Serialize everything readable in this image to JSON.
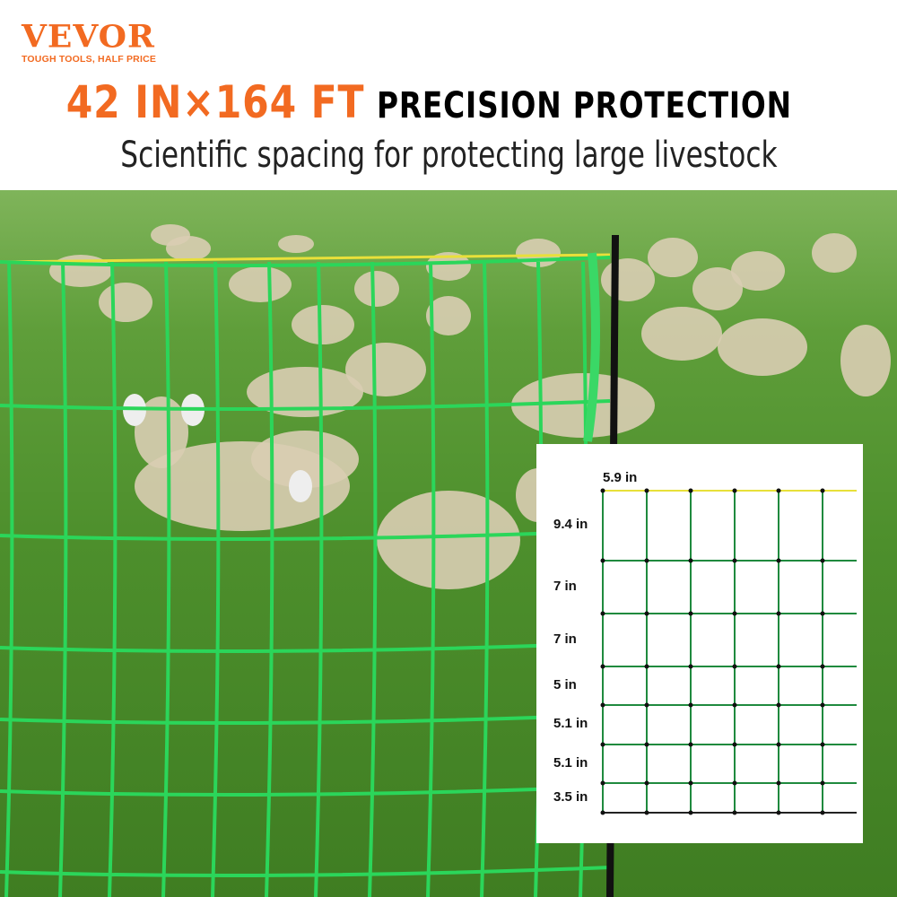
{
  "logo": {
    "brand": "VEVOR",
    "tagline": "TOUGH TOOLS, HALF PRICE"
  },
  "headline": {
    "size": "42 IN×164 FT",
    "tagline": "PRECISION PROTECTION"
  },
  "subtitle": "Scientific spacing for protecting large livestock",
  "colors": {
    "accent": "#f26a21",
    "fence_green": "#2bd65a",
    "top_wire_yellow": "#e8e03a"
  },
  "diagram": {
    "column_spacing": "5.9 in",
    "row_spacings": [
      "9.4 in",
      "7 in",
      "7 in",
      "5 in",
      "5.1 in",
      "5.1 in",
      "3.5 in"
    ]
  }
}
